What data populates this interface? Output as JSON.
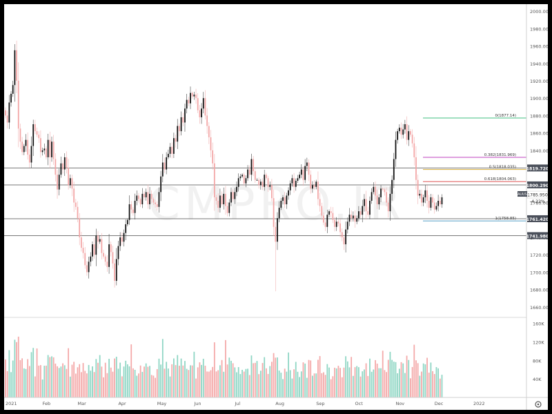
{
  "chart_data": {
    "type": "candlestick",
    "symbol": "XAUUSD",
    "watermark": "CMPRO.IR",
    "x_ticks": [
      "2021",
      "Feb",
      "Mar",
      "Apr",
      "May",
      "Jun",
      "Jul",
      "Aug",
      "Sep",
      "Oct",
      "Nov",
      "Dec",
      "2022"
    ],
    "y_ticks": [
      "2000.000",
      "1980.000",
      "1960.000",
      "1940.000",
      "1920.000",
      "1900.000",
      "1880.000",
      "1860.000",
      "1840.000",
      "1820.000",
      "1800.000",
      "1780.000",
      "1760.000",
      "1740.000",
      "1720.000",
      "1700.000",
      "1680.000",
      "1660.000"
    ],
    "y_range": [
      1648,
      2008
    ],
    "last_price": {
      "value": "1785.950",
      "change": "-4.22%"
    },
    "horizontal_levels": [
      {
        "label": "1819.720",
        "price": 1819.72
      },
      {
        "label": "1800.290",
        "price": 1800.29
      },
      {
        "label": "1761.420",
        "price": 1761.42
      },
      {
        "label": "1741.980",
        "price": 1741.98
      }
    ],
    "fibonacci": [
      {
        "label": "0(1877.14)",
        "price": 1877.14,
        "color": "#66cc99"
      },
      {
        "label": "0.382(1831.969)",
        "price": 1831.969,
        "color": "#cc66cc"
      },
      {
        "label": "0.5(1818.035)",
        "price": 1818.035,
        "color": "#d9b34d"
      },
      {
        "label": "0.618(1804.063)",
        "price": 1804.063,
        "color": "#e06666"
      },
      {
        "label": "1(1758.85)",
        "price": 1758.85,
        "color": "#66aacc"
      }
    ],
    "volume_ticks": [
      "160K",
      "120K",
      "80K",
      "40K"
    ],
    "volume_range": [
      0,
      170000
    ],
    "month_start_index": [
      0,
      20,
      39,
      61,
      82,
      102,
      124,
      146,
      168,
      189,
      211,
      232,
      253
    ],
    "close": [
      1880,
      1872,
      1895,
      1905,
      1915,
      1955,
      1920,
      1865,
      1850,
      1838,
      1845,
      1852,
      1835,
      1826,
      1845,
      1870,
      1862,
      1858,
      1854,
      1838,
      1840,
      1842,
      1832,
      1852,
      1832,
      1850,
      1830,
      1812,
      1795,
      1812,
      1825,
      1818,
      1832,
      1820,
      1800,
      1808,
      1796,
      1780,
      1775,
      1762,
      1740,
      1728,
      1722,
      1708,
      1700,
      1712,
      1718,
      1732,
      1720,
      1742,
      1735,
      1738,
      1722,
      1718,
      1712,
      1706,
      1732,
      1723,
      1710,
      1690,
      1715,
      1730,
      1740,
      1735,
      1745,
      1755,
      1760,
      1778,
      1772,
      1768,
      1782,
      1788,
      1784,
      1778,
      1790,
      1786,
      1792,
      1778,
      1790,
      1784,
      1780,
      1778,
      1775,
      1792,
      1810,
      1826,
      1818,
      1832,
      1836,
      1844,
      1836,
      1854,
      1850,
      1868,
      1862,
      1878,
      1872,
      1888,
      1898,
      1894,
      1906,
      1902,
      1904,
      1900,
      1886,
      1878,
      1888,
      1900,
      1880,
      1868,
      1855,
      1840,
      1825,
      1786,
      1782,
      1774,
      1788,
      1778,
      1790,
      1776,
      1768,
      1780,
      1792,
      1784,
      1792,
      1798,
      1808,
      1810,
      1812,
      1802,
      1808,
      1818,
      1812,
      1830,
      1816,
      1806,
      1806,
      1800,
      1804,
      1798,
      1812,
      1808,
      1798,
      1800,
      1785,
      1752,
      1735,
      1762,
      1774,
      1782,
      1786,
      1778,
      1788,
      1794,
      1802,
      1808,
      1798,
      1805,
      1808,
      1812,
      1818,
      1806,
      1822,
      1826,
      1812,
      1796,
      1800,
      1798,
      1804,
      1784,
      1776,
      1765,
      1757,
      1752,
      1766,
      1770,
      1768,
      1760,
      1752,
      1758,
      1756,
      1746,
      1740,
      1732,
      1749,
      1758,
      1766,
      1762,
      1765,
      1758,
      1762,
      1770,
      1766,
      1776,
      1784,
      1770,
      1766,
      1782,
      1792,
      1798,
      1788,
      1778,
      1786,
      1796,
      1795,
      1792,
      1780,
      1770,
      1790,
      1806,
      1830,
      1852,
      1862,
      1866,
      1858,
      1864,
      1870,
      1852,
      1862,
      1858,
      1848,
      1832,
      1806,
      1788,
      1790,
      1780,
      1786,
      1794,
      1782,
      1774,
      1786,
      1780,
      1772,
      1776,
      1782,
      1778,
      1786
    ]
  }
}
